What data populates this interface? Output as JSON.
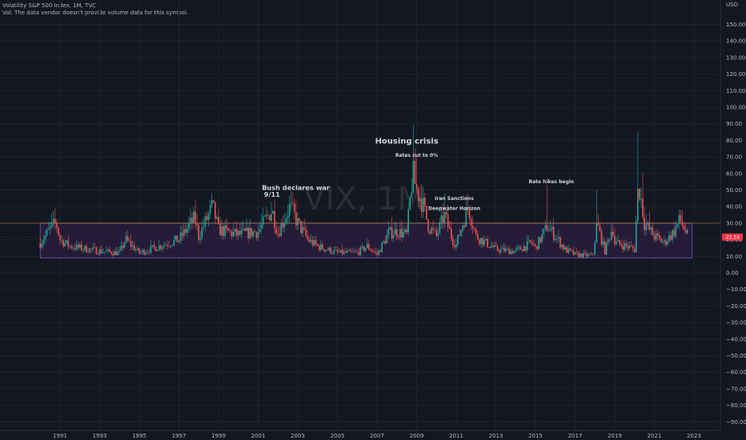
{
  "header": {
    "title": "Volatility S&P 500 Index, 1M, TVC",
    "volume_note": "Vol: The data vendor doesn't provide volume data for this symbol."
  },
  "colors": {
    "background": "#131722",
    "up": "#26a69a",
    "down": "#ef5350",
    "zone_fill": "#2b1f3f",
    "zone_border": "#7e57c2",
    "price_badge": "#f23645",
    "grid": "#1e222d",
    "hline": "#f7a600"
  },
  "watermark": {
    "symbol": "VIX, 1M"
  },
  "chart_data": {
    "type": "candlestick",
    "currency": "USD",
    "price_label": "21.55",
    "last_price": 21.55,
    "y_ticks": [
      150,
      140,
      130,
      120,
      110,
      100,
      90,
      80,
      70,
      60,
      50,
      40,
      30,
      20,
      10,
      0,
      -10,
      -20,
      -30,
      -40,
      -50,
      -60,
      -70,
      -80,
      -90
    ],
    "y_tick_labels": [
      "150.00",
      "140.00",
      "130.00",
      "120.00",
      "110.00",
      "100.00",
      "90.00",
      "80.00",
      "70.00",
      "60.00",
      "50.00",
      "40.00",
      "30.00",
      "20.00",
      "10.00",
      "0.00",
      "−10.00",
      "−20.00",
      "−30.00",
      "−40.00",
      "−50.00",
      "−60.00",
      "−70.00",
      "−80.00",
      "−90.00"
    ],
    "x_ticks": [
      1991,
      1993,
      1995,
      1997,
      1999,
      2001,
      2003,
      2005,
      2007,
      2009,
      2011,
      2013,
      2015,
      2017,
      2019,
      2021,
      2023
    ],
    "x_tick_labels": [
      "1991",
      "1993",
      "1995",
      "1997",
      "1999",
      "2001",
      "2003",
      "2005",
      "2007",
      "2009",
      "2011",
      "2013",
      "2015",
      "2017",
      "2019",
      "2021",
      "2023"
    ],
    "zone": {
      "x_start": 1990.0,
      "x_end": 2022.9,
      "y_low": 9,
      "y_high": 30
    },
    "horizontal_line": 30,
    "annotations": [
      {
        "text": "9/11",
        "x": 2001.7,
        "y": 46
      },
      {
        "text": "Bush declares war",
        "x": 2002.9,
        "y": 50
      },
      {
        "text": "Housing crisis",
        "x": 2008.5,
        "y": 78
      },
      {
        "text": "Rates cut to 0%",
        "x": 2009.0,
        "y": 70
      },
      {
        "text": "Iran Sanctions",
        "x": 2010.9,
        "y": 44
      },
      {
        "text": "Deepwater Horizon",
        "x": 2010.9,
        "y": 38
      },
      {
        "text": "Rate hikes begin",
        "x": 2015.8,
        "y": 54
      }
    ],
    "anchors": [
      [
        1990.0,
        18
      ],
      [
        1990.6,
        28
      ],
      [
        1990.8,
        30
      ],
      [
        1991.0,
        20
      ],
      [
        1991.5,
        16
      ],
      [
        1992.0,
        15
      ],
      [
        1993.0,
        13
      ],
      [
        1994.0,
        12
      ],
      [
        1994.3,
        20
      ],
      [
        1995.0,
        12
      ],
      [
        1996.0,
        16
      ],
      [
        1997.0,
        20
      ],
      [
        1997.8,
        33
      ],
      [
        1998.0,
        22
      ],
      [
        1998.7,
        40
      ],
      [
        1999.0,
        26
      ],
      [
        2000.0,
        23
      ],
      [
        2000.5,
        24
      ],
      [
        2001.0,
        25
      ],
      [
        2001.7,
        38
      ],
      [
        2002.0,
        24
      ],
      [
        2002.6,
        40
      ],
      [
        2003.0,
        30
      ],
      [
        2003.5,
        20
      ],
      [
        2004.0,
        16
      ],
      [
        2005.0,
        12
      ],
      [
        2006.0,
        12
      ],
      [
        2006.5,
        16
      ],
      [
        2007.0,
        11
      ],
      [
        2007.6,
        24
      ],
      [
        2008.0,
        25
      ],
      [
        2008.5,
        23
      ],
      [
        2008.8,
        60
      ],
      [
        2009.0,
        50
      ],
      [
        2009.3,
        42
      ],
      [
        2009.6,
        28
      ],
      [
        2010.0,
        22
      ],
      [
        2010.4,
        35
      ],
      [
        2010.8,
        20
      ],
      [
        2011.0,
        17
      ],
      [
        2011.6,
        40
      ],
      [
        2012.0,
        22
      ],
      [
        2012.5,
        18
      ],
      [
        2013.0,
        14
      ],
      [
        2014.0,
        13
      ],
      [
        2014.8,
        18
      ],
      [
        2015.0,
        15
      ],
      [
        2015.6,
        28
      ],
      [
        2016.0,
        22
      ],
      [
        2016.5,
        14
      ],
      [
        2017.0,
        11
      ],
      [
        2017.9,
        10
      ],
      [
        2018.1,
        30
      ],
      [
        2018.5,
        13
      ],
      [
        2018.9,
        28
      ],
      [
        2019.0,
        18
      ],
      [
        2019.6,
        16
      ],
      [
        2020.0,
        14
      ],
      [
        2020.2,
        55
      ],
      [
        2020.5,
        30
      ],
      [
        2021.0,
        22
      ],
      [
        2021.5,
        18
      ],
      [
        2022.0,
        25
      ],
      [
        2022.3,
        32
      ],
      [
        2022.7,
        21.55
      ]
    ],
    "spikes": [
      [
        1990.6,
        36
      ],
      [
        1998.7,
        48
      ],
      [
        2001.7,
        43
      ],
      [
        2002.6,
        45
      ],
      [
        2008.8,
        89
      ],
      [
        2009.0,
        70
      ],
      [
        2010.4,
        48
      ],
      [
        2011.6,
        48
      ],
      [
        2015.6,
        53
      ],
      [
        2018.1,
        50
      ],
      [
        2020.2,
        85
      ],
      [
        2020.4,
        60
      ],
      [
        2022.3,
        38
      ]
    ]
  }
}
